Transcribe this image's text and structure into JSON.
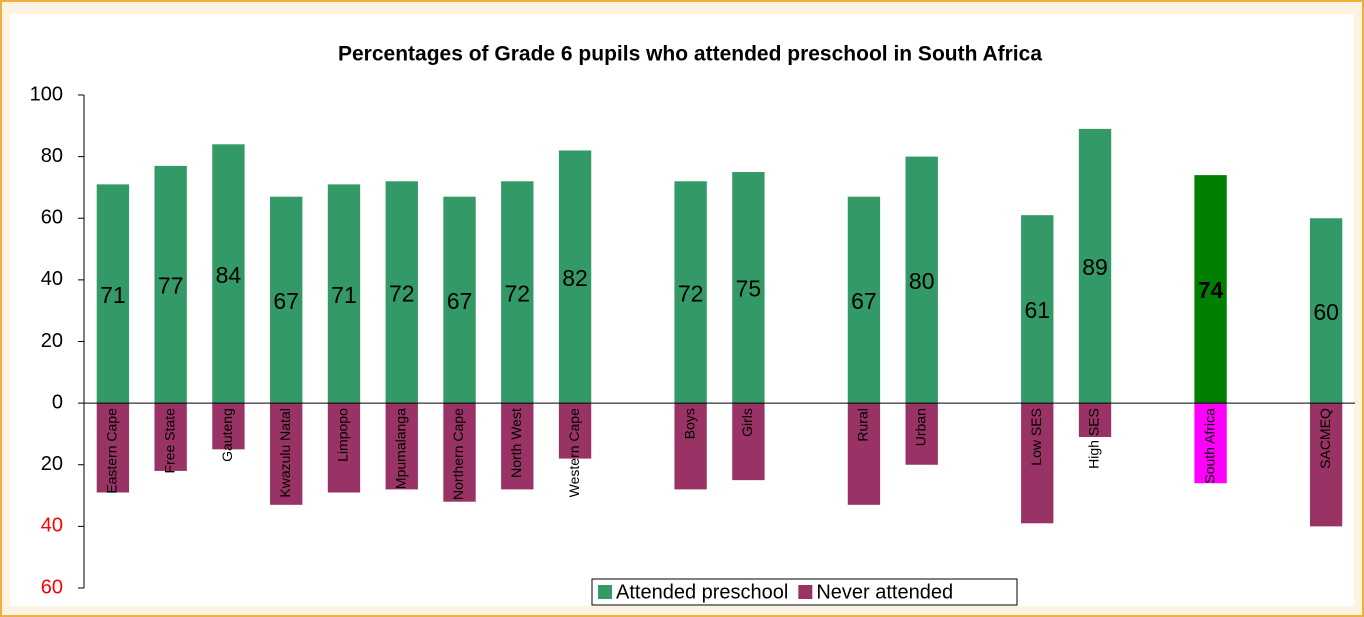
{
  "chart_data": {
    "type": "bar",
    "stacked": "diverging",
    "title": "Percentages of Grade 6 pupils who attended preschool in South Africa",
    "categories": [
      "Eastern Cape",
      "Free State",
      "Gauteng",
      "Kwazulu Natal",
      "Limpopo",
      "Mpumalanga",
      "Northern Cape",
      "North West",
      "Western Cape",
      null,
      "Boys",
      "Girls",
      null,
      "Rural",
      "Urban",
      null,
      "Low SES",
      "High SES",
      null,
      "South Africa",
      null,
      "SACMEQ"
    ],
    "series": [
      {
        "name": "Attended preschool",
        "color": "#339966",
        "values": [
          71,
          77,
          84,
          67,
          71,
          72,
          67,
          72,
          82,
          null,
          72,
          75,
          null,
          67,
          80,
          null,
          61,
          89,
          null,
          74,
          null,
          60
        ],
        "highlight": {
          "index": 19,
          "color": "#008000",
          "bold_label": true
        }
      },
      {
        "name": "Never attended",
        "color": "#993366",
        "values": [
          -29,
          -22,
          -15,
          -33,
          -29,
          -28,
          -32,
          -28,
          -18,
          null,
          -28,
          -25,
          null,
          -33,
          -20,
          null,
          -39,
          -11,
          null,
          -26,
          null,
          -40
        ],
        "highlight": {
          "index": 19,
          "color": "#ff00ff"
        }
      }
    ],
    "ylim": [
      -60,
      100
    ],
    "yticks": [
      100,
      80,
      60,
      40,
      20,
      0,
      {
        "value": -20,
        "label": "20"
      },
      {
        "value": -40,
        "label": "40"
      },
      {
        "value": -60,
        "label": "60"
      }
    ],
    "ytick_colors": [
      "#000000",
      "#000000",
      "#000000",
      "#000000",
      "#000000",
      "#000000",
      "#000000",
      "#ff0000",
      "#ff0000"
    ],
    "legend": "bottom"
  }
}
